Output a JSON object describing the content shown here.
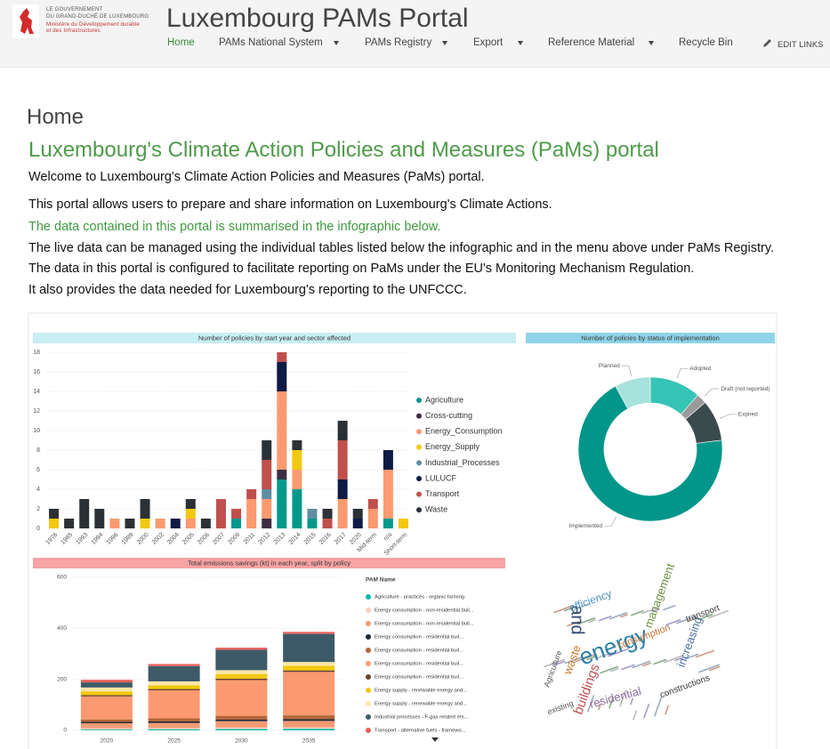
{
  "header": {
    "logo_lines": [
      "LE GOUVERNEMENT",
      "DU GRAND-DUCHÉ DE LUXEMBOURG",
      "Ministère du Développement durable",
      "et des Infrastructures"
    ],
    "site_title": "Luxembourg PAMs Portal",
    "nav": [
      "Home",
      "PAMs National System",
      "PAMs Registry",
      "Export",
      "Reference Material",
      "Recycle Bin"
    ],
    "edit_links": "EDIT LINKS"
  },
  "content": {
    "page_title": "Home",
    "heading": "Luxembourg's Climate Action Policies and Measures (PaMs) portal",
    "paragraphs": [
      "Welcome to Luxembourg's Climate Action Policies and Measures (PaMs) portal.",
      "This portal allows users to prepare and share information on Luxembourg's Climate Actions.",
      "The data contained in this portal is summarised in the infographic below.",
      "The live data can be managed using the individual tables listed below the infographic and in the menu above under PaMs Registry.",
      "The data in this portal is configured to facilitate reporting on PaMs under the EU's Monitoring Mechanism Regulation.",
      "It also provides the data needed for Luxembourg's reporting to the UNFCCC."
    ]
  },
  "chart_data": [
    {
      "type": "stacked_bar",
      "title": "Number of policies by start year and sector affected",
      "categories": [
        "1976",
        "1985",
        "1993",
        "1994",
        "1996",
        "1999",
        "2000",
        "2002",
        "2004",
        "2005",
        "2006",
        "2007",
        "2009",
        "2011",
        "2012",
        "2013",
        "2014",
        "2015",
        "2016",
        "2017",
        "2020",
        "Mid-term",
        "n/a",
        "Short-term"
      ],
      "series": [
        {
          "name": "Agriculture",
          "color": "#01998a",
          "values": [
            0,
            0,
            0,
            0,
            0,
            0,
            0,
            0,
            0,
            0,
            0,
            0,
            1,
            0,
            0,
            5,
            4,
            1,
            0,
            0,
            0,
            0,
            1,
            0
          ]
        },
        {
          "name": "Cross-cutting",
          "color": "#3f2d44",
          "values": [
            0,
            0,
            0,
            0,
            0,
            0,
            0,
            0,
            0,
            0,
            0,
            0,
            0,
            0,
            1,
            1,
            0,
            0,
            0,
            0,
            0,
            0,
            0,
            0
          ]
        },
        {
          "name": "Energy_Consumption",
          "color": "#fb9a70",
          "values": [
            0,
            0,
            0,
            0,
            1,
            0,
            0,
            1,
            0,
            1,
            0,
            0,
            0,
            3,
            2,
            8,
            2,
            0,
            0,
            3,
            0,
            2,
            5,
            0
          ]
        },
        {
          "name": "Energy_Supply",
          "color": "#f2c80f",
          "values": [
            1,
            0,
            0,
            0,
            0,
            0,
            1,
            0,
            0,
            1,
            0,
            0,
            0,
            0,
            0,
            0,
            2,
            0,
            0,
            0,
            0,
            0,
            0,
            1
          ]
        },
        {
          "name": "Industrial_Processes",
          "color": "#5f8ea3",
          "values": [
            0,
            0,
            0,
            0,
            0,
            0,
            0,
            0,
            0,
            0,
            0,
            0,
            0,
            0,
            1,
            0,
            0,
            1,
            0,
            0,
            0,
            0,
            0,
            0
          ]
        },
        {
          "name": "LULUCF",
          "color": "#0e1b44",
          "values": [
            0,
            0,
            0,
            0,
            0,
            0,
            0,
            0,
            1,
            0,
            0,
            0,
            0,
            0,
            0,
            3,
            0,
            0,
            0,
            2,
            1,
            0,
            2,
            0
          ]
        },
        {
          "name": "Transport",
          "color": "#c0504d",
          "values": [
            0,
            0,
            0,
            0,
            0,
            0,
            0,
            0,
            0,
            0,
            0,
            3,
            1,
            1,
            3,
            1,
            0,
            0,
            1,
            4,
            0,
            1,
            0,
            0
          ]
        },
        {
          "name": "Waste",
          "color": "#2c3136",
          "values": [
            1,
            1,
            3,
            2,
            0,
            1,
            2,
            0,
            0,
            1,
            1,
            0,
            0,
            0,
            2,
            0,
            1,
            0,
            1,
            2,
            1,
            0,
            0,
            0
          ]
        }
      ],
      "ylim": [
        0,
        18
      ],
      "yticks": [
        0,
        2,
        4,
        6,
        8,
        10,
        12,
        14,
        16,
        18
      ],
      "grid": true
    },
    {
      "type": "donut",
      "title": "Number of policies by status of implementation",
      "categories": [
        "Adopted",
        "Draft (not reported)",
        "Expired",
        "Implemented",
        "Planned"
      ],
      "values": [
        10,
        2,
        8,
        60,
        7
      ],
      "colors": [
        "#35c4b5",
        "#9a9a9a",
        "#3b4a4d",
        "#01968a",
        "#a8e2dc"
      ]
    },
    {
      "type": "stacked_bar",
      "title": "Total emissions savings (kt) in each year, split by policy",
      "legend_title": "PAM Name",
      "categories": [
        "2020",
        "2025",
        "2030",
        "2035"
      ],
      "series": [
        {
          "name": "Agriculture - practices - organic farming",
          "color": "#01b8aa",
          "values": [
            3,
            4,
            5,
            6
          ]
        },
        {
          "name": "Energy consumption - non-residential buil...",
          "color": "#f8d0bf",
          "values": [
            5,
            5,
            6,
            6
          ]
        },
        {
          "name": "Energy consumption - non-residential buil...",
          "color": "#f49a74",
          "values": [
            20,
            20,
            25,
            25
          ]
        },
        {
          "name": "Energy consumption - residential buil...",
          "color": "#1d2634",
          "values": [
            5,
            6,
            6,
            7
          ]
        },
        {
          "name": "Energy consumption - residential buil...",
          "color": "#b5663a",
          "values": [
            10,
            12,
            15,
            15
          ]
        },
        {
          "name": "Energy consumption - residential buil...",
          "color": "#fb9a70",
          "values": [
            90,
            110,
            140,
            170
          ]
        },
        {
          "name": "Energy consumption - residential buil...",
          "color": "#6b4330",
          "values": [
            5,
            5,
            6,
            6
          ]
        },
        {
          "name": "Energy supply - renewable energy and...",
          "color": "#f2c80f",
          "values": [
            15,
            15,
            18,
            18
          ]
        },
        {
          "name": "Energy supply - renewable energy and...",
          "color": "#fbe7a8",
          "values": [
            15,
            15,
            15,
            15
          ]
        },
        {
          "name": "Industrial processes - F-gas related em...",
          "color": "#3d5a68",
          "values": [
            20,
            60,
            80,
            110
          ]
        },
        {
          "name": "Transport - alternative fuels - framewo...",
          "color": "#e8605a",
          "values": [
            10,
            8,
            8,
            8
          ]
        }
      ],
      "ylim": [
        0,
        600
      ],
      "yticks": [
        0,
        200,
        400,
        600
      ],
      "grid": true
    }
  ],
  "word_cloud": {
    "words": [
      "energy",
      "and",
      "efficiency",
      "consumption",
      "management",
      "increasing",
      "transport",
      "residential",
      "buildings",
      "constructions",
      "waste",
      "Agriculture",
      "existing"
    ]
  }
}
